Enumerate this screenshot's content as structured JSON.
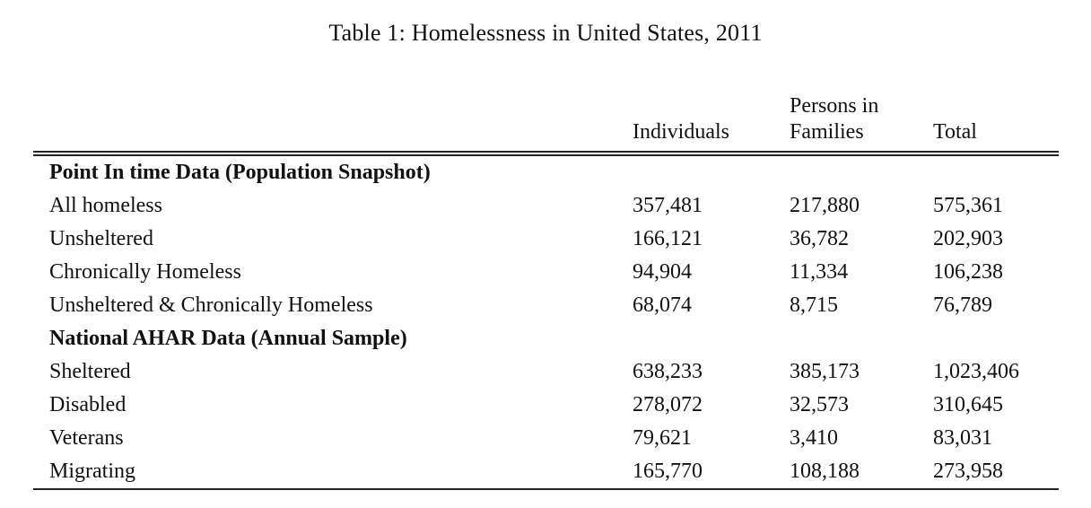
{
  "title": "Table 1: Homelessness in United States, 2011",
  "table": {
    "columns": {
      "individuals": "Individuals",
      "families_line1": "Persons in",
      "families_line2": "Families",
      "total": "Total"
    },
    "sections": [
      {
        "header": "Point In time Data (Population Snapshot)",
        "rows": [
          {
            "label": "All homeless",
            "individuals": "357,481",
            "families": "217,880",
            "total": "575,361"
          },
          {
            "label": "Unsheltered",
            "individuals": "166,121",
            "families": "36,782",
            "total": "202,903"
          },
          {
            "label": "Chronically Homeless",
            "individuals": "94,904",
            "families": "11,334",
            "total": "106,238"
          },
          {
            "label": "Unsheltered & Chronically Homeless",
            "individuals": "68,074",
            "families": "8,715",
            "total": "76,789"
          }
        ]
      },
      {
        "header": "National AHAR Data (Annual Sample)",
        "rows": [
          {
            "label": "Sheltered",
            "individuals": "638,233",
            "families": "385,173",
            "total": "1,023,406"
          },
          {
            "label": "Disabled",
            "individuals": "278,072",
            "families": "32,573",
            "total": "310,645"
          },
          {
            "label": "Veterans",
            "individuals": "79,621",
            "families": "3,410",
            "total": "83,031"
          },
          {
            "label": "Migrating",
            "individuals": "165,770",
            "families": "108,188",
            "total": "273,958"
          }
        ]
      }
    ]
  }
}
